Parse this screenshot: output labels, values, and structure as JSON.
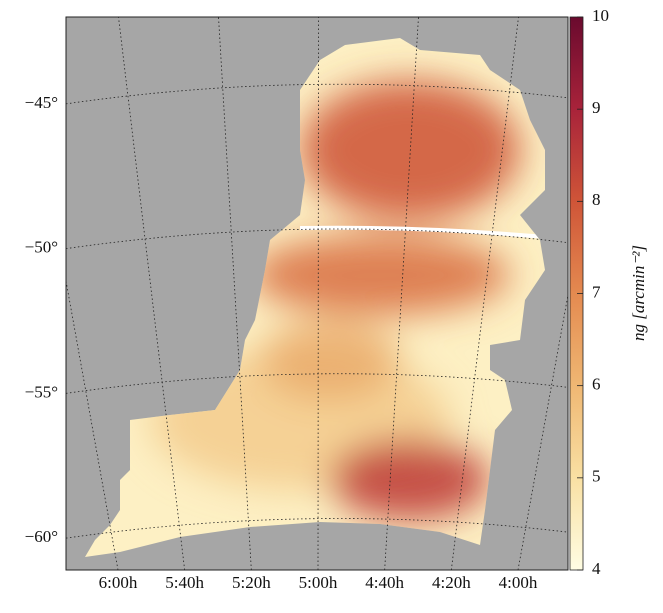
{
  "chart_data": {
    "type": "map",
    "colorbar_label": "ng [arcmin⁻²]",
    "xlim": [
      6.26,
      3.75
    ],
    "xticks": [
      {
        "value": 6,
        "label": "6:00h"
      },
      {
        "value": 5.6667,
        "label": "5:40h"
      },
      {
        "value": 5.3333,
        "label": "5:20h"
      },
      {
        "value": 5,
        "label": "5:00h"
      },
      {
        "value": 4.6667,
        "label": "4:40h"
      },
      {
        "value": 4.3333,
        "label": "4:20h"
      },
      {
        "value": 4,
        "label": "4:00h"
      }
    ],
    "ylim": [
      -61.1,
      -42
    ],
    "yticks": [
      {
        "value": -45,
        "label": "−45°"
      },
      {
        "value": -50,
        "label": "−50°"
      },
      {
        "value": -55,
        "label": "−55°"
      },
      {
        "value": -60,
        "label": "−60°"
      }
    ],
    "clim": [
      4,
      10
    ],
    "cticks": [
      4,
      5,
      6,
      7,
      8,
      9,
      10
    ],
    "colormap": [
      "#fffde3",
      "#f9e0a3",
      "#efb773",
      "#e48a50",
      "#cf5538",
      "#a8233a",
      "#6a0a2e"
    ],
    "background": "#a6a6a6",
    "grid": true
  }
}
